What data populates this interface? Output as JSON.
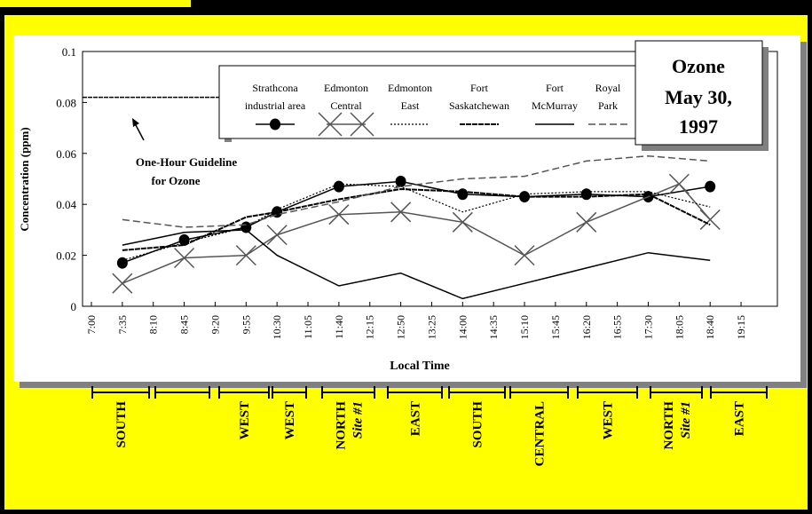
{
  "chart_data": {
    "type": "line",
    "title": "Ozone May 30, 1997",
    "title_lines": [
      "Ozone",
      "May 30,",
      "1997"
    ],
    "xlabel": "Local Time",
    "ylabel": "Concentration (ppm)",
    "ylim": [
      0,
      0.1
    ],
    "yticks": [
      "0",
      "0.02",
      "0.04",
      "0.06",
      "0.08",
      "0.1"
    ],
    "x": [
      "7:00",
      "7:35",
      "8:10",
      "8:45",
      "9:20",
      "9:55",
      "10:30",
      "11:05",
      "11:40",
      "12:15",
      "12:50",
      "13:25",
      "14:00",
      "14:35",
      "15:10",
      "15:45",
      "16:20",
      "16:55",
      "17:30",
      "18:05",
      "18:40",
      "19:15"
    ],
    "guideline": {
      "value": 0.082,
      "label_lines": [
        "One-Hour Guideline",
        "for Ozone"
      ]
    },
    "legend_position": "top-center",
    "series": [
      {
        "name": "Strathcona industrial area",
        "name_lines": [
          "Strathcona",
          "industrial area"
        ],
        "style": "solid-dots",
        "values": [
          null,
          0.017,
          null,
          0.026,
          null,
          0.031,
          0.037,
          null,
          0.047,
          null,
          0.049,
          null,
          0.044,
          null,
          0.043,
          null,
          0.044,
          null,
          0.043,
          null,
          0.047,
          null
        ]
      },
      {
        "name": "Edmonton Central",
        "name_lines": [
          "Edmonton",
          "Central"
        ],
        "style": "x-markers",
        "values": [
          null,
          0.009,
          null,
          0.019,
          null,
          0.02,
          0.028,
          null,
          0.036,
          null,
          0.037,
          null,
          0.033,
          null,
          0.02,
          null,
          0.033,
          null,
          null,
          0.048,
          0.034,
          null
        ]
      },
      {
        "name": "Edmonton East",
        "name_lines": [
          "Edmonton",
          "East"
        ],
        "style": "dotted",
        "values": [
          null,
          0.018,
          null,
          0.025,
          null,
          0.031,
          0.038,
          null,
          0.048,
          null,
          0.047,
          null,
          0.037,
          null,
          0.044,
          null,
          0.045,
          null,
          0.045,
          null,
          0.039,
          null
        ]
      },
      {
        "name": "Fort Saskatchewan",
        "name_lines": [
          "Fort",
          "Saskatchewan"
        ],
        "style": "heavy-dashed",
        "values": [
          null,
          0.022,
          null,
          0.024,
          null,
          0.035,
          0.037,
          null,
          0.042,
          null,
          0.046,
          null,
          0.045,
          null,
          0.043,
          null,
          0.043,
          null,
          0.044,
          null,
          0.032,
          null
        ]
      },
      {
        "name": "Fort McMurray",
        "name_lines": [
          "Fort",
          "McMurray"
        ],
        "style": "solid",
        "values": [
          null,
          0.024,
          null,
          0.029,
          null,
          0.03,
          0.02,
          null,
          0.008,
          null,
          0.013,
          null,
          0.003,
          null,
          0.009,
          null,
          0.015,
          null,
          0.021,
          null,
          0.018,
          null
        ]
      },
      {
        "name": "Royal Park",
        "name_lines": [
          "Royal",
          "Park"
        ],
        "style": "dashed",
        "values": [
          null,
          0.034,
          null,
          0.031,
          null,
          0.032,
          0.036,
          null,
          0.041,
          null,
          0.047,
          null,
          0.05,
          null,
          0.051,
          null,
          0.057,
          null,
          0.059,
          null,
          0.057,
          null
        ]
      }
    ]
  },
  "wind_sectors": [
    {
      "label": "SOUTH",
      "sub": ""
    },
    {
      "label": "",
      "sub": ""
    },
    {
      "label": "WEST",
      "sub": ""
    },
    {
      "label": "WEST",
      "sub": ""
    },
    {
      "label": "NORTH",
      "sub": "Site #1"
    },
    {
      "label": "EAST",
      "sub": ""
    },
    {
      "label": "SOUTH",
      "sub": ""
    },
    {
      "label": "CENTRAL",
      "sub": ""
    },
    {
      "label": "WEST",
      "sub": ""
    },
    {
      "label": "NORTH",
      "sub": "Site #1"
    },
    {
      "label": "EAST",
      "sub": ""
    }
  ]
}
